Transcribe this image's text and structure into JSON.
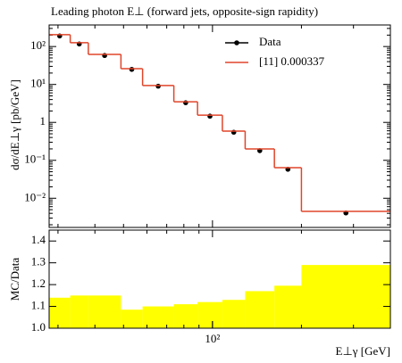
{
  "chart_data": [
    {
      "type": "histogram",
      "title": "Leading photon E⊥ (forward jets, opposite-sign rapidity)",
      "ylabel": "dσ/dE⊥γ [pb/GeV]",
      "bins": [
        28,
        33,
        38,
        49,
        58,
        74,
        89,
        108,
        129,
        162,
        200,
        400
      ],
      "xlim": [
        28,
        400
      ],
      "xscale": "log",
      "ylim": [
        0.0017,
        370
      ],
      "yscale": "log",
      "yticks": [
        {
          "value": 100,
          "label": "10²"
        },
        {
          "value": 10,
          "label": "10¹"
        },
        1,
        {
          "value": 0.1,
          "label": "10⁻¹"
        },
        {
          "value": 0.01,
          "label": "10⁻²"
        }
      ],
      "legend": "upper right",
      "series": [
        {
          "name": "Data",
          "color": "#000000",
          "style": "points",
          "values": [
            190,
            117,
            58,
            25,
            9,
            3.3,
            1.46,
            0.55,
            0.18,
            0.058,
            0.0041
          ]
        },
        {
          "name": "[11] 0.000337",
          "color": "#e0452a",
          "style": "step",
          "values": [
            205,
            126,
            62,
            26,
            9.4,
            3.5,
            1.55,
            0.59,
            0.2,
            0.064,
            0.0045
          ]
        }
      ]
    },
    {
      "type": "histogram",
      "ylabel": "MC/Data",
      "xlabel": "E⊥γ [GeV]",
      "bins": [
        28,
        33,
        38,
        49,
        58,
        74,
        89,
        108,
        129,
        162,
        200,
        400
      ],
      "xlim": [
        28,
        400
      ],
      "xscale": "log",
      "xticks": [
        {
          "value": 100,
          "label": "10²"
        }
      ],
      "ylim": [
        1.0,
        1.45
      ],
      "yticks": [
        {
          "value": 1,
          "label": "1.0"
        },
        1.1,
        1.2,
        1.3,
        1.4
      ],
      "color": "#ffff00",
      "values": [
        1.14,
        1.15,
        1.15,
        1.085,
        1.1,
        1.11,
        1.12,
        1.13,
        1.17,
        1.195,
        1.29
      ]
    }
  ]
}
